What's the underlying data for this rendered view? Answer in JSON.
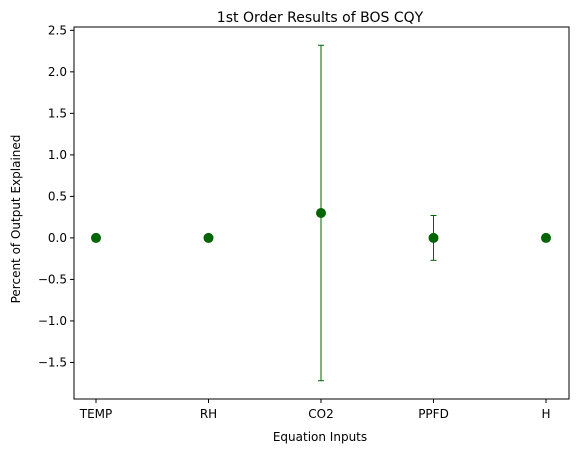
{
  "chart_data": {
    "type": "scatter",
    "title": "1st Order Results of BOS CQY",
    "xlabel": "Equation Inputs",
    "ylabel": "Percent of Output Explained",
    "categories": [
      "TEMP",
      "RH",
      "CO2",
      "PPFD",
      "H"
    ],
    "series": [
      {
        "values": [
          0.0,
          0.0,
          0.3,
          0.0,
          0.0
        ],
        "error": [
          0.0,
          0.0,
          2.02,
          0.27,
          0.0
        ],
        "color": "#006400"
      }
    ],
    "ylim": [
      -1.94,
      2.54
    ],
    "yticks": [
      -1.5,
      -1.0,
      -0.5,
      0.0,
      0.5,
      1.0,
      1.5,
      2.0,
      2.5
    ],
    "ytick_labels": [
      "−1.5",
      "−1.0",
      "−0.5",
      "0.0",
      "0.5",
      "1.0",
      "1.5",
      "2.0",
      "2.5"
    ],
    "grid": false,
    "legend": "none"
  }
}
